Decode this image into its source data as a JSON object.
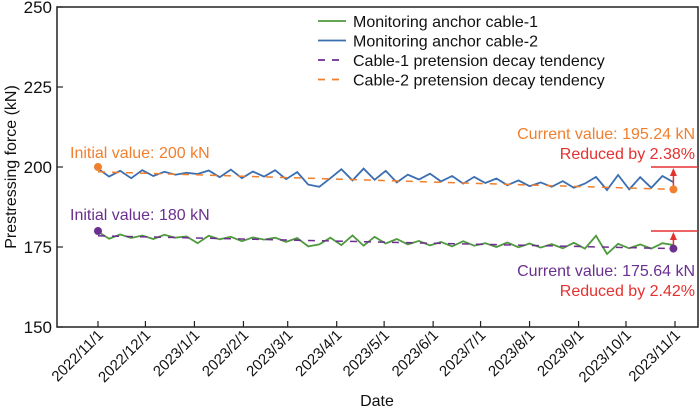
{
  "chart_data": {
    "type": "line",
    "xlabel": "Date",
    "ylabel": "Prestressing force (kN)",
    "ylim": [
      150,
      250
    ],
    "yticks": [
      150,
      175,
      200,
      225,
      250
    ],
    "xticks": [
      "2022/11/1",
      "2022/12/1",
      "2023/1/1",
      "2023/2/1",
      "2023/3/1",
      "2023/4/1",
      "2023/5/1",
      "2023/6/1",
      "2023/7/1",
      "2023/8/1",
      "2023/9/1",
      "2023/10/1",
      "2023/11/1"
    ],
    "xlim": [
      "2022/11/1",
      "2023/11/1"
    ],
    "grid": false,
    "legend_position": "top-right",
    "x": [
      "2022-11-01",
      "2022-11-08",
      "2022-11-15",
      "2022-11-22",
      "2022-11-29",
      "2022-12-06",
      "2022-12-13",
      "2022-12-20",
      "2022-12-27",
      "2023-01-03",
      "2023-01-10",
      "2023-01-17",
      "2023-01-24",
      "2023-01-31",
      "2023-02-07",
      "2023-02-14",
      "2023-02-21",
      "2023-02-28",
      "2023-03-07",
      "2023-03-14",
      "2023-03-21",
      "2023-03-28",
      "2023-04-04",
      "2023-04-11",
      "2023-04-18",
      "2023-04-25",
      "2023-05-02",
      "2023-05-09",
      "2023-05-16",
      "2023-05-23",
      "2023-05-30",
      "2023-06-06",
      "2023-06-13",
      "2023-06-20",
      "2023-06-27",
      "2023-07-04",
      "2023-07-11",
      "2023-07-18",
      "2023-07-25",
      "2023-08-01",
      "2023-08-08",
      "2023-08-15",
      "2023-08-22",
      "2023-08-29",
      "2023-09-05",
      "2023-09-12",
      "2023-09-19",
      "2023-09-26",
      "2023-10-03",
      "2023-10-10",
      "2023-10-17",
      "2023-10-24",
      "2023-10-31"
    ],
    "series": [
      {
        "name": "Monitoring anchor cable-1",
        "color": "#4e9a3c",
        "style": "solid",
        "values": [
          179.8,
          177.6,
          178.9,
          177.8,
          178.6,
          177.5,
          178.8,
          177.9,
          178.3,
          176.2,
          178.5,
          177.4,
          178.2,
          176.8,
          178,
          177.3,
          177.9,
          176.6,
          177.8,
          175.2,
          175.8,
          177.9,
          175.6,
          178.6,
          175.4,
          178.2,
          176.1,
          177.5,
          175.8,
          176.9,
          175.5,
          176.6,
          175.2,
          176.8,
          175.4,
          176.2,
          175,
          176.4,
          174.9,
          176.1,
          174.8,
          175.9,
          174.6,
          176.3,
          174.5,
          178.5,
          172.8,
          176,
          174.6,
          175.8,
          174.5,
          176.2,
          175.64
        ]
      },
      {
        "name": "Monitoring anchor cable-2",
        "color": "#3a6eb0",
        "style": "solid",
        "values": [
          199.5,
          197,
          198.8,
          196.5,
          199,
          197.2,
          198.5,
          197.6,
          198.2,
          197.8,
          198.9,
          196.8,
          199.2,
          196.5,
          198.6,
          197,
          199,
          196.2,
          198.4,
          194.5,
          193.8,
          196.5,
          199.3,
          195.8,
          199.5,
          196,
          198.8,
          195.2,
          197.6,
          196.1,
          197.9,
          195.5,
          197.2,
          194.8,
          196.9,
          195,
          196.4,
          194.3,
          195.8,
          194,
          195.2,
          193.8,
          195.6,
          193.5,
          194.8,
          196.9,
          192.8,
          197.5,
          193,
          196.8,
          193.5,
          197.2,
          195.24
        ]
      },
      {
        "name": "Cable-1 pretension decay tendency",
        "color": "#6b2f8f",
        "style": "dashed",
        "x": [
          "2022-11-01",
          "2023-10-31"
        ],
        "values": [
          178.5,
          174.5
        ]
      },
      {
        "name": "Cable-2 pretension decay tendency",
        "color": "#f07f2e",
        "style": "dashed",
        "x": [
          "2022-11-01",
          "2023-10-31"
        ],
        "values": [
          198.5,
          193
        ]
      }
    ],
    "annotations": {
      "initial_2": {
        "text": "Initial value: 200 kN",
        "color": "#f07f2e",
        "value": 200
      },
      "initial_1": {
        "text": "Initial value: 180 kN",
        "color": "#6b2f8f",
        "value": 180
      },
      "current_2": {
        "text": "Current value: 195.24 kN",
        "color": "#f07f2e",
        "value": 195.24
      },
      "reduced_2": {
        "text": "Reduced by 2.38%",
        "color": "#e53030"
      },
      "current_1": {
        "text": "Current value: 175.64 kN",
        "color": "#6b2f8f",
        "value": 175.64
      },
      "reduced_1": {
        "text": "Reduced by 2.42%",
        "color": "#e53030"
      }
    }
  }
}
